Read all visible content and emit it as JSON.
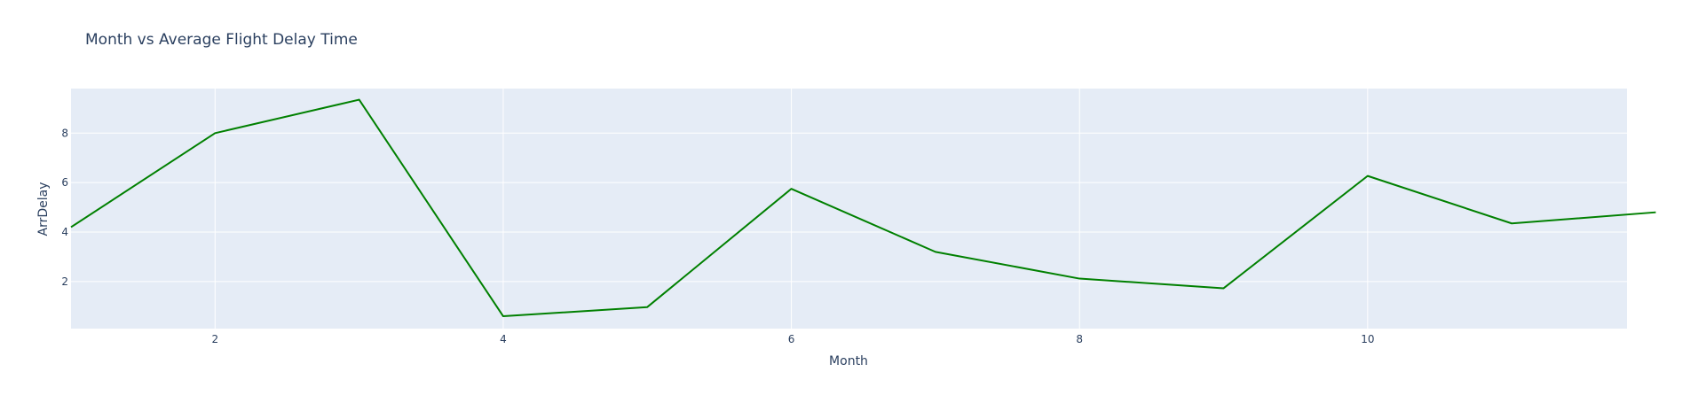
{
  "chart_data": {
    "type": "line",
    "title": "Month vs Average Flight Delay Time",
    "xlabel": "Month",
    "ylabel": "ArrDelay",
    "x": [
      1,
      2,
      3,
      4,
      5,
      6,
      7,
      8,
      9,
      10,
      11,
      12
    ],
    "series": [
      {
        "values": [
          4.2,
          8.0,
          9.35,
          0.6,
          0.97,
          5.75,
          3.2,
          2.12,
          1.73,
          6.27,
          4.35,
          4.8
        ],
        "color": "#008000"
      }
    ],
    "xlim": [
      1,
      11.8
    ],
    "ylim": [
      0.1,
      9.8
    ],
    "x_ticks": [
      "2",
      "4",
      "6",
      "8",
      "10"
    ],
    "y_ticks": [
      "2",
      "4",
      "6",
      "8"
    ],
    "plot_background": "#e5ecf6",
    "grid": true,
    "legend": false
  }
}
